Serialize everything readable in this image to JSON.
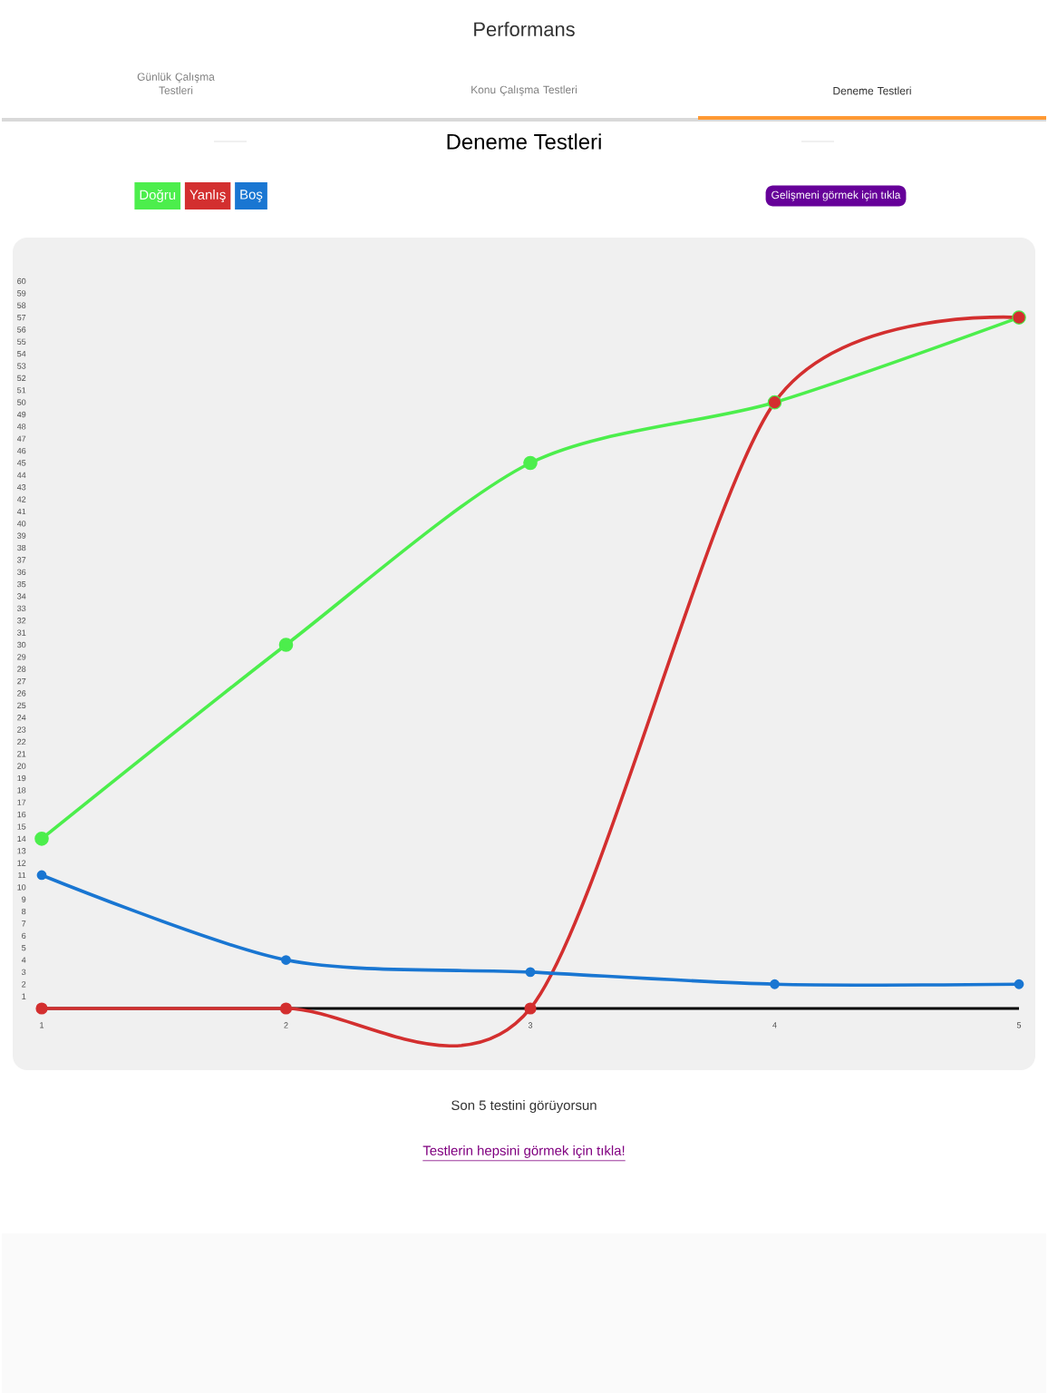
{
  "chart_data": {
    "type": "line",
    "title": "Deneme Testleri",
    "annotations": [
      "Performans",
      "Günlük Çalışma Testleri",
      "Konu Çalışma Testleri",
      "Deneme Testleri",
      "Gelişmeni görmek için tıkla",
      "Son 5 testini görüyorsun",
      "Testlerin hepsini görmek için tıkla!"
    ],
    "x": [
      1,
      2,
      3,
      4,
      5
    ],
    "series": [
      {
        "name": "Doğru",
        "color": "#4cee4c",
        "values": [
          14,
          30,
          45,
          50,
          57
        ]
      },
      {
        "name": "Yanlış",
        "color": "#d32f2f",
        "values": [
          0,
          0,
          0,
          50,
          57
        ]
      },
      {
        "name": "Boş",
        "color": "#1976d2",
        "values": [
          11,
          4,
          3,
          2,
          2
        ]
      }
    ],
    "xlim": [
      1,
      5
    ],
    "xticks": [
      1,
      2,
      3,
      4,
      5
    ],
    "ylim": [
      0,
      60
    ],
    "yticks": [
      1,
      2,
      3,
      4,
      5,
      6,
      7,
      8,
      9,
      10,
      11,
      12,
      13,
      14,
      15,
      16,
      17,
      18,
      19,
      20,
      21,
      22,
      23,
      24,
      25,
      26,
      27,
      28,
      29,
      30,
      31,
      32,
      33,
      34,
      35,
      36,
      37,
      38,
      39,
      40,
      41,
      42,
      43,
      44,
      45,
      46,
      47,
      48,
      49,
      50,
      51,
      52,
      53,
      54,
      55,
      56,
      57,
      58,
      59,
      60
    ],
    "legend": "top left",
    "marker": "circle",
    "line_style": "solid",
    "grid": false
  }
}
